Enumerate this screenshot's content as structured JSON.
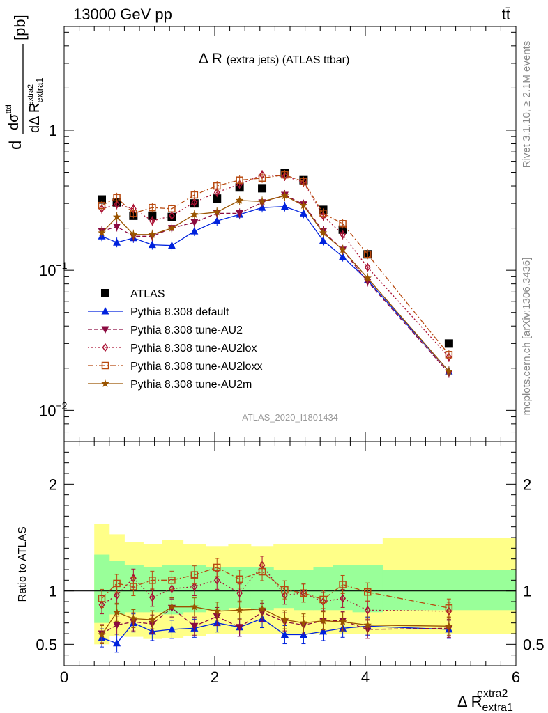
{
  "header": {
    "energy": "13000 GeV pp",
    "process": "tt̄"
  },
  "side": {
    "rivet": "Rivet 3.1.10, ≥ 2.1M events",
    "mcplots": "mcplots.cern.ch [arXiv:1306.3436]"
  },
  "colors": {
    "ATLAS": "#000000",
    "default": "#0022dd",
    "AU2": "#8b0a40",
    "AU2lox": "#aa1133",
    "AU2loxx": "#b84a10",
    "AU2m": "#9a5400",
    "band_inner": "#99ff99",
    "band_outer": "#ffff88"
  },
  "chart_data": [
    {
      "type": "scatter",
      "title": "Δ R (extra jets) (ATLAS ttbar)",
      "analysis_id": "ATLAS_2020_I1801434",
      "ylabel": "dσ^ttd / dΔ R_extra1^extra2 [pb]",
      "ylabel_parts": {
        "lead": "d",
        "num_sym": "dσ",
        "num_sup": "ttd",
        "den_sym": "dΔ R",
        "den_sub": "extra1",
        "den_sup": "extra2",
        "unit": "[pb]"
      },
      "yscale": "log",
      "ylim": [
        0.006,
        5.5
      ],
      "xlim": [
        0,
        6
      ],
      "yticks": [
        {
          "value": 1,
          "label": "1"
        },
        {
          "value": 0.1,
          "label": "10",
          "exp": "−1"
        },
        {
          "value": 0.01,
          "label": "10",
          "exp": "−2"
        }
      ],
      "legend_position": "lower-left",
      "x": [
        0.5,
        0.7,
        0.92,
        1.17,
        1.43,
        1.73,
        2.03,
        2.33,
        2.63,
        2.93,
        3.18,
        3.44,
        3.7,
        4.03,
        5.11
      ],
      "series": [
        {
          "name": "ATLAS",
          "key": "ATLAS",
          "style": "data",
          "marker": "square",
          "values": [
            0.32,
            0.305,
            0.245,
            0.245,
            0.24,
            0.3,
            0.325,
            0.39,
            0.385,
            0.495,
            0.44,
            0.27,
            0.195,
            0.13,
            0.03
          ]
        },
        {
          "name": "Pythia 8.308 default",
          "key": "default",
          "marker": "triangle-up",
          "dash": "",
          "values": [
            0.175,
            0.158,
            0.17,
            0.152,
            0.15,
            0.19,
            0.225,
            0.25,
            0.28,
            0.285,
            0.255,
            0.163,
            0.125,
            0.085,
            0.019
          ]
        },
        {
          "name": "Pythia 8.308 tune-AU2",
          "key": "AU2",
          "marker": "triangle-down",
          "dash": "6,3",
          "values": [
            0.19,
            0.205,
            0.175,
            0.175,
            0.2,
            0.22,
            0.255,
            0.255,
            0.305,
            0.345,
            0.295,
            0.19,
            0.14,
            0.083,
            0.0185
          ]
        },
        {
          "name": "Pythia 8.308 tune-AU2lox",
          "key": "AU2lox",
          "marker": "diamond-open",
          "dash": "2,3",
          "values": [
            0.275,
            0.295,
            0.275,
            0.225,
            0.245,
            0.305,
            0.36,
            0.41,
            0.48,
            0.47,
            0.425,
            0.245,
            0.18,
            0.105,
            0.024
          ]
        },
        {
          "name": "Pythia 8.308 tune-AU2loxx",
          "key": "AU2loxx",
          "marker": "square-open",
          "dash": "8,3,2,3",
          "values": [
            0.29,
            0.33,
            0.255,
            0.28,
            0.275,
            0.345,
            0.4,
            0.44,
            0.455,
            0.48,
            0.43,
            0.255,
            0.215,
            0.13,
            0.025
          ]
        },
        {
          "name": "Pythia 8.308 tune-AU2m",
          "key": "AU2m",
          "marker": "star",
          "dash": "",
          "values": [
            0.185,
            0.24,
            0.18,
            0.18,
            0.2,
            0.25,
            0.26,
            0.315,
            0.31,
            0.34,
            0.29,
            0.185,
            0.14,
            0.088,
            0.019
          ]
        }
      ]
    },
    {
      "type": "line",
      "ylabel": "Ratio to ATLAS",
      "xlabel": "Δ R_extra1^extra2",
      "xlabel_parts": {
        "sym": "Δ R",
        "sub": "extra1",
        "sup": "extra2"
      },
      "ylim": [
        0.3,
        2.4
      ],
      "xlim": [
        0,
        6
      ],
      "xticks": [
        0,
        2,
        4,
        6
      ],
      "yticks": [
        {
          "value": 0.5,
          "label": "0.5"
        },
        {
          "value": 1,
          "label": "1"
        },
        {
          "value": 2,
          "label": "2"
        }
      ],
      "band_edges": [
        0.4,
        0.6,
        0.8,
        1.05,
        1.3,
        1.58,
        1.88,
        2.18,
        2.48,
        2.78,
        3.05,
        3.31,
        3.57,
        3.83,
        4.23,
        6.0
      ],
      "band_inner": [
        [
          0.7,
          1.34
        ],
        [
          0.78,
          1.28
        ],
        [
          0.8,
          1.24
        ],
        [
          0.8,
          1.22
        ],
        [
          0.78,
          1.24
        ],
        [
          0.8,
          1.24
        ],
        [
          0.82,
          1.22
        ],
        [
          0.84,
          1.22
        ],
        [
          0.82,
          1.22
        ],
        [
          0.84,
          1.2
        ],
        [
          0.82,
          1.2
        ],
        [
          0.82,
          1.22
        ],
        [
          0.82,
          1.24
        ],
        [
          0.8,
          1.24
        ],
        [
          0.82,
          1.2
        ]
      ],
      "band_outer": [
        [
          0.5,
          1.63
        ],
        [
          0.58,
          1.53
        ],
        [
          0.57,
          1.46
        ],
        [
          0.55,
          1.44
        ],
        [
          0.56,
          1.48
        ],
        [
          0.58,
          1.44
        ],
        [
          0.6,
          1.42
        ],
        [
          0.6,
          1.44
        ],
        [
          0.6,
          1.42
        ],
        [
          0.6,
          1.44
        ],
        [
          0.6,
          1.44
        ],
        [
          0.6,
          1.44
        ],
        [
          0.6,
          1.44
        ],
        [
          0.6,
          1.44
        ],
        [
          0.6,
          1.5
        ]
      ],
      "series": [
        {
          "key": "default",
          "values": [
            0.56,
            0.51,
            0.7,
            0.62,
            0.64,
            0.65,
            0.7,
            0.66,
            0.74,
            0.59,
            0.59,
            0.62,
            0.65,
            0.67,
            0.64
          ]
        },
        {
          "key": "AU2",
          "values": [
            0.6,
            0.68,
            0.71,
            0.69,
            0.84,
            0.67,
            0.76,
            0.66,
            0.8,
            0.71,
            0.68,
            0.72,
            0.72,
            0.64,
            0.65
          ]
        },
        {
          "key": "AU2lox",
          "values": [
            0.87,
            0.96,
            1.12,
            0.94,
            1.02,
            1.04,
            1.1,
            0.98,
            1.24,
            0.96,
            0.98,
            0.9,
            0.93,
            0.82,
            0.81
          ]
        },
        {
          "key": "AU2loxx",
          "values": [
            0.93,
            1.07,
            1.04,
            1.1,
            1.1,
            1.15,
            1.22,
            1.11,
            1.18,
            1.01,
            0.98,
            0.92,
            1.06,
            0.99,
            0.84
          ]
        },
        {
          "key": "AU2m",
          "values": [
            0.59,
            0.8,
            0.74,
            0.73,
            0.85,
            0.85,
            0.81,
            0.82,
            0.83,
            0.73,
            0.7,
            0.72,
            0.71,
            0.68,
            0.67
          ]
        }
      ]
    }
  ]
}
